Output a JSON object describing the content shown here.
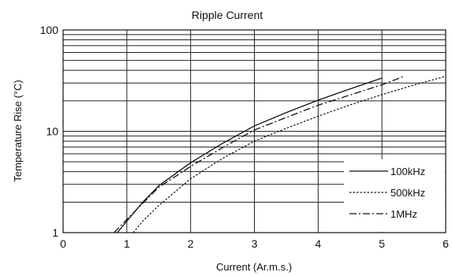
{
  "chart_data": {
    "type": "line",
    "title": "Ripple Current",
    "xlabel": "Current (Ar.m.s.)",
    "ylabel": "Temperature Rise (°C)",
    "xlim": [
      0,
      6
    ],
    "ylim": [
      1,
      100
    ],
    "yscale": "log",
    "grid": true,
    "legend_position": "bottom-right",
    "x_ticks": [
      "0",
      "1",
      "2",
      "3",
      "4",
      "5",
      "6"
    ],
    "y_ticks": [
      {
        "value": 1,
        "label": "1"
      },
      {
        "value": 10,
        "label": "10"
      },
      {
        "value": 100,
        "label": "100"
      }
    ],
    "series": [
      {
        "name": "100kHz",
        "style": "solid",
        "x": [
          0.85,
          1.0,
          1.25,
          1.5,
          2.0,
          2.5,
          3.0,
          3.5,
          4.0,
          4.5,
          5.0
        ],
        "y": [
          1.0,
          1.3,
          2.0,
          2.9,
          4.9,
          7.6,
          11.3,
          15.3,
          20.3,
          26.2,
          33.5
        ]
      },
      {
        "name": "500kHz",
        "style": "dotted",
        "x": [
          1.1,
          1.25,
          1.5,
          2.0,
          2.5,
          3.0,
          3.5,
          4.0,
          4.5,
          5.0,
          5.5,
          6.0
        ],
        "y": [
          1.0,
          1.3,
          1.85,
          3.4,
          5.4,
          8.0,
          10.7,
          14.1,
          18.2,
          23.0,
          28.6,
          34.9
        ]
      },
      {
        "name": "1MHz",
        "style": "dashdot",
        "x": [
          0.8,
          1.0,
          1.25,
          1.5,
          2.0,
          2.5,
          3.0,
          3.5,
          4.0,
          4.5,
          5.0,
          5.35
        ],
        "y": [
          1.0,
          1.35,
          1.95,
          2.8,
          4.5,
          6.9,
          10.3,
          13.7,
          18.1,
          22.8,
          28.8,
          34.9
        ]
      }
    ]
  }
}
